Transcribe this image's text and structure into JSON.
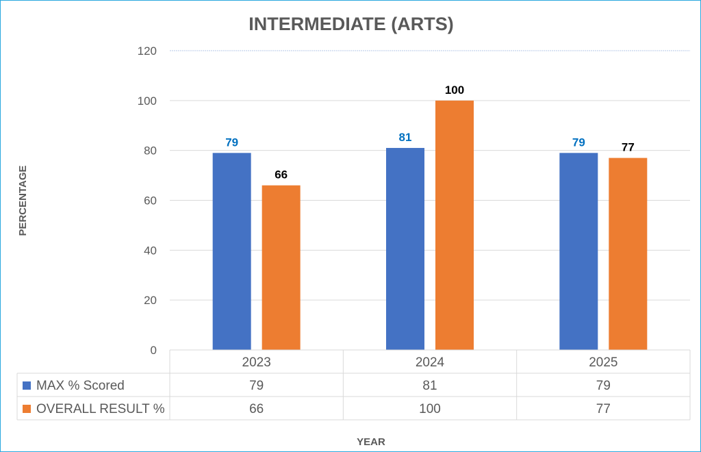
{
  "chart_data": {
    "type": "bar",
    "title": "INTERMEDIATE (ARTS)",
    "xlabel": "YEAR",
    "ylabel": "PERCENTAGE",
    "categories": [
      "2023",
      "2024",
      "2025"
    ],
    "series": [
      {
        "name": "MAX % Scored",
        "values": [
          79,
          81,
          79
        ],
        "color": "#4472C4",
        "label_color": "#0070C0"
      },
      {
        "name": "OVERALL RESULT %",
        "values": [
          66,
          100,
          77
        ],
        "color": "#ED7D31",
        "label_color": "#000000"
      }
    ],
    "ylim": [
      0,
      120
    ],
    "yticks": [
      0,
      20,
      40,
      60,
      80,
      100,
      120
    ],
    "grid": true,
    "legend": "data-table-bottom",
    "data_table": true,
    "border_color": "#2AA7DF"
  }
}
